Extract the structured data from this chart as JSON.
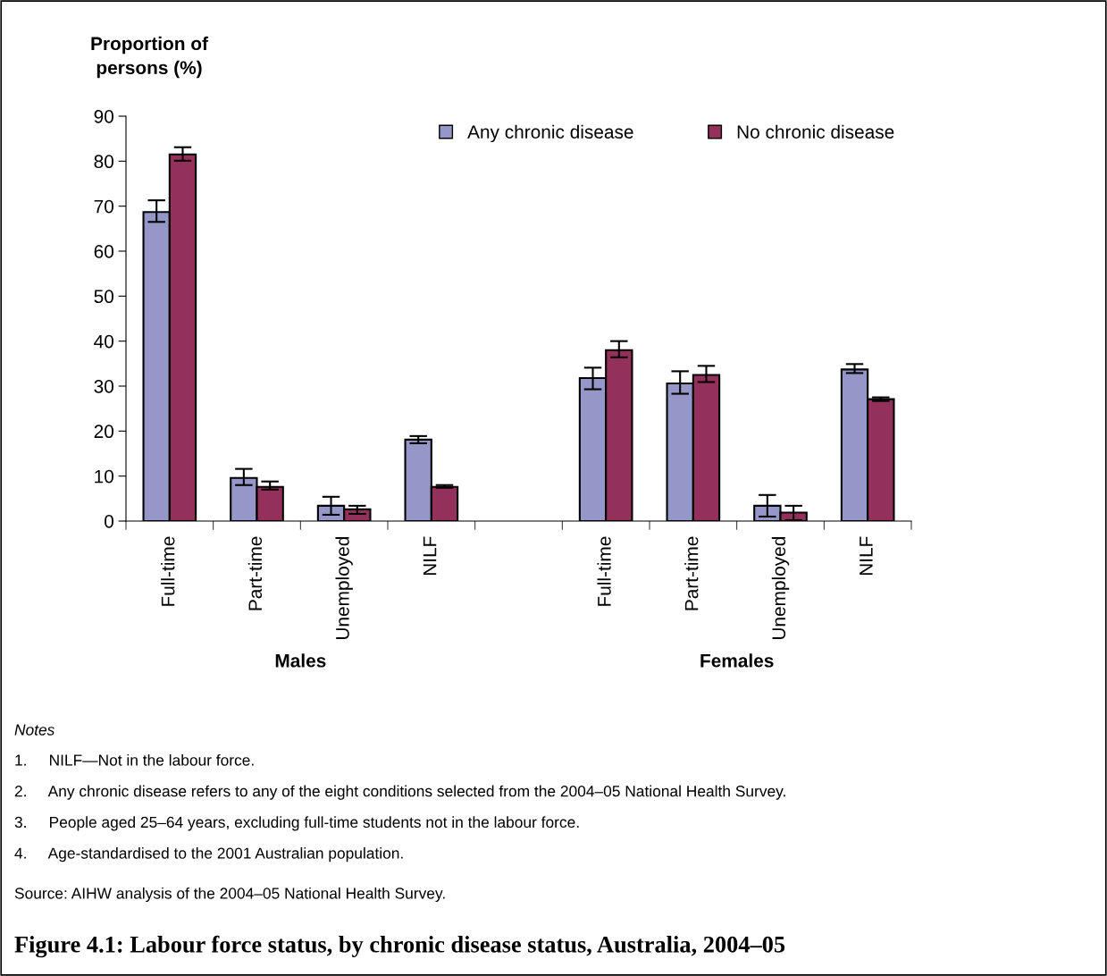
{
  "chart_data": {
    "type": "bar",
    "title": "Figure 4.1: Labour force status, by chronic disease status, Australia, 2004–05",
    "ylabel": "Proportion of\npersons (%)",
    "categories": [
      "Full-time",
      "Part-time",
      "Unemployed",
      "NILF",
      null,
      "Full-time",
      "Part-time",
      "Unemployed",
      "NILF"
    ],
    "series": [
      {
        "name": "Any chronic disease",
        "color": "#9497c8",
        "values": [
          68.7,
          9.6,
          3.4,
          18.1,
          null,
          31.8,
          30.6,
          3.4,
          33.7
        ],
        "errors": [
          [
            66.5,
            71.3
          ],
          [
            8.0,
            11.6
          ],
          [
            1.4,
            5.4
          ],
          [
            17.3,
            18.9
          ],
          null,
          [
            29.3,
            34.1
          ],
          [
            28.3,
            33.3
          ],
          [
            1.0,
            5.8
          ],
          [
            32.9,
            34.9
          ]
        ]
      },
      {
        "name": "No chronic disease",
        "color": "#94305c",
        "values": [
          81.5,
          7.6,
          2.6,
          7.6,
          null,
          38.0,
          32.5,
          1.9,
          27.1
        ],
        "errors": [
          [
            80.1,
            83.1
          ],
          [
            7.0,
            8.8
          ],
          [
            1.6,
            3.4
          ],
          [
            7.4,
            8.0
          ],
          null,
          [
            36.4,
            40.0
          ],
          [
            30.9,
            34.5
          ],
          [
            0.2,
            3.4
          ],
          [
            26.7,
            27.5
          ]
        ]
      }
    ],
    "ylim": [
      0,
      90
    ],
    "yticks": [
      0,
      10,
      20,
      30,
      40,
      50,
      60,
      70,
      80,
      90
    ],
    "grid": false,
    "legend": "top right",
    "annotations": [
      "Males",
      "Females",
      "Notes",
      "1.     NILF—Not in the labour force.",
      "2.     Any chronic disease refers to any of the eight conditions selected from the 2004–05 National Health Survey.",
      "3.     People aged 25–64 years, excluding full-time students not in the labour force.",
      "4.     Age-standardised to the 2001 Australian population.",
      "Source: AIHW analysis of the 2004–05 National Health Survey."
    ]
  }
}
